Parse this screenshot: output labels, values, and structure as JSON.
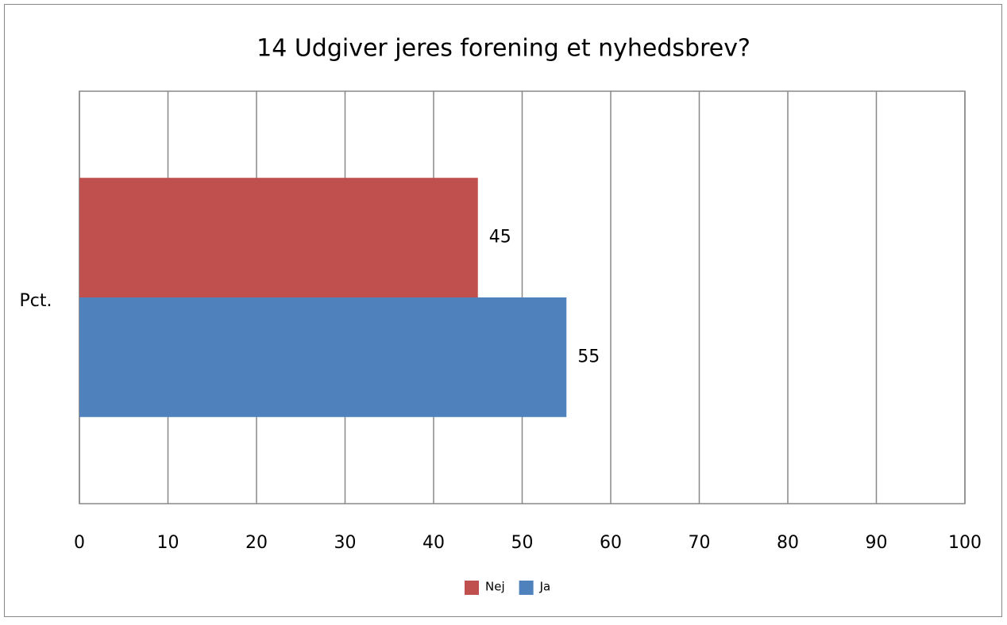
{
  "chart_data": {
    "type": "bar",
    "orientation": "horizontal",
    "title": "14 Udgiver jeres forening et nyhedsbrev?",
    "categories": [
      "Pct."
    ],
    "series": [
      {
        "name": "Nej",
        "color": "#c0504d",
        "values": [
          45
        ]
      },
      {
        "name": "Ja",
        "color": "#4f81bd",
        "values": [
          55
        ]
      }
    ],
    "xlim": [
      0,
      100
    ],
    "xticks": [
      0,
      10,
      20,
      30,
      40,
      50,
      60,
      70,
      80,
      90,
      100
    ],
    "grid": true,
    "legend": "bottom"
  }
}
